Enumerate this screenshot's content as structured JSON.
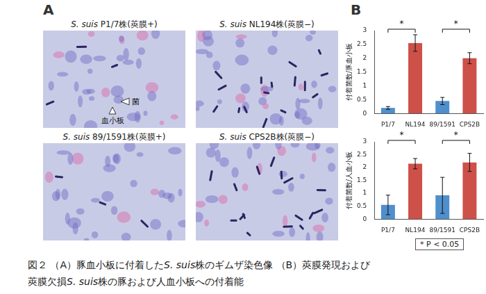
{
  "panel_labels": [
    "A",
    "B"
  ],
  "micrographs": [
    {
      "species": "S. suis",
      "strain": "P1/7株(莢膜+)",
      "annotations": [
        "菌",
        "血小板"
      ]
    },
    {
      "species": "S. suis",
      "strain": "NL194株(莢膜−)"
    },
    {
      "species": "S. suis",
      "strain": "89/1591株(莢膜+)"
    },
    {
      "species": "S. suis",
      "strain": "CPS2B株(莢膜−)"
    }
  ],
  "chart_data": [
    {
      "type": "bar",
      "ylabel": "付着菌数/豚血小板",
      "categories": [
        "P1/7",
        "NL194",
        "89/1591",
        "CPS2B"
      ],
      "values": [
        0.2,
        2.55,
        0.45,
        2.0
      ],
      "errors": [
        0.05,
        0.3,
        0.13,
        0.2
      ],
      "colors": [
        "#4f8fcc",
        "#cd5049",
        "#4f8fcc",
        "#cd5049"
      ],
      "ylim": [
        0,
        3
      ],
      "yticks": [
        0,
        0.5,
        1,
        1.5,
        2,
        2.5,
        3
      ],
      "grid": false,
      "annotations": [
        {
          "from": "P1/7",
          "to": "NL194",
          "text": "*"
        },
        {
          "from": "89/1591",
          "to": "CPS2B",
          "text": "*"
        }
      ]
    },
    {
      "type": "bar",
      "ylabel": "付着菌数/人血小板",
      "categories": [
        "P1/7",
        "NL194",
        "89/1591",
        "CPS2B"
      ],
      "values": [
        0.55,
        2.15,
        0.92,
        2.2
      ],
      "errors": [
        0.38,
        0.2,
        0.7,
        0.35
      ],
      "colors": [
        "#4f8fcc",
        "#cd5049",
        "#4f8fcc",
        "#cd5049"
      ],
      "ylim": [
        0,
        3
      ],
      "yticks": [
        0,
        0.5,
        1,
        1.5,
        2,
        2.5,
        3
      ],
      "grid": false,
      "annotations": [
        {
          "from": "P1/7",
          "to": "NL194",
          "text": "*"
        },
        {
          "from": "89/1591",
          "to": "CPS2B",
          "text": "*"
        }
      ]
    }
  ],
  "significance_note": "* P < 0.05",
  "caption": [
    [
      {
        "text": "図２ （A）豚血小板に付着した"
      },
      {
        "text": "S. suis",
        "italic": true
      },
      {
        "text": "株のギムザ染色像 （B）莢膜発現および"
      }
    ],
    [
      {
        "text": "莢膜欠損"
      },
      {
        "text": "S. suis",
        "italic": true
      },
      {
        "text": "株の豚および人血小板への付着能"
      }
    ]
  ]
}
